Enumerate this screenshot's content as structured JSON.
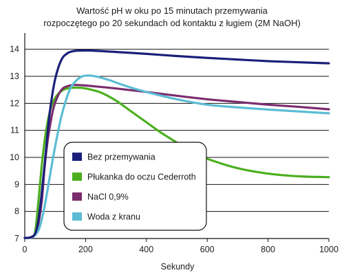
{
  "chart_data": {
    "type": "line",
    "title_line1": "Wartość pH w oku po 15 minutach przemywania",
    "title_line2": "rozpoczętego po 20 sekundach od kontaktu z ługiem (2M NaOH)",
    "xlabel": "Sekundy",
    "ylabel": "",
    "xlim": [
      0,
      1000
    ],
    "ylim": [
      7,
      14.5
    ],
    "xticks": [
      0,
      200,
      400,
      600,
      800,
      1000
    ],
    "yticks": [
      7,
      8,
      9,
      10,
      11,
      12,
      13,
      14
    ],
    "grid": "horizontal",
    "legend_position": "center-left",
    "series": [
      {
        "name": "Bez przemywania",
        "color": "#1b1f7a",
        "points": [
          [
            0,
            7.02
          ],
          [
            20,
            7.05
          ],
          [
            35,
            7.2
          ],
          [
            45,
            7.7
          ],
          [
            55,
            8.6
          ],
          [
            65,
            9.7
          ],
          [
            75,
            10.9
          ],
          [
            85,
            11.9
          ],
          [
            100,
            12.9
          ],
          [
            120,
            13.6
          ],
          [
            140,
            13.85
          ],
          [
            160,
            13.93
          ],
          [
            180,
            13.95
          ],
          [
            220,
            13.95
          ],
          [
            300,
            13.9
          ],
          [
            400,
            13.83
          ],
          [
            500,
            13.75
          ],
          [
            600,
            13.68
          ],
          [
            700,
            13.62
          ],
          [
            800,
            13.56
          ],
          [
            900,
            13.52
          ],
          [
            1000,
            13.48
          ]
        ]
      },
      {
        "name": "Płukanka do oczu Cederroth",
        "color": "#4caf1f",
        "points": [
          [
            0,
            7.02
          ],
          [
            25,
            7.05
          ],
          [
            35,
            7.3
          ],
          [
            45,
            8.4
          ],
          [
            55,
            9.6
          ],
          [
            65,
            10.6
          ],
          [
            75,
            11.3
          ],
          [
            85,
            11.8
          ],
          [
            100,
            12.2
          ],
          [
            120,
            12.45
          ],
          [
            140,
            12.55
          ],
          [
            170,
            12.58
          ],
          [
            200,
            12.55
          ],
          [
            250,
            12.4
          ],
          [
            300,
            12.1
          ],
          [
            350,
            11.7
          ],
          [
            400,
            11.3
          ],
          [
            450,
            10.9
          ],
          [
            500,
            10.55
          ],
          [
            550,
            10.2
          ],
          [
            600,
            9.95
          ],
          [
            700,
            9.6
          ],
          [
            800,
            9.4
          ],
          [
            900,
            9.3
          ],
          [
            1000,
            9.27
          ]
        ]
      },
      {
        "name": "NaCl 0,9%",
        "color": "#7b2c6e",
        "points": [
          [
            0,
            7.02
          ],
          [
            25,
            7.05
          ],
          [
            40,
            7.3
          ],
          [
            55,
            8.3
          ],
          [
            65,
            9.6
          ],
          [
            75,
            10.6
          ],
          [
            85,
            11.3
          ],
          [
            95,
            11.85
          ],
          [
            110,
            12.3
          ],
          [
            125,
            12.55
          ],
          [
            145,
            12.65
          ],
          [
            165,
            12.68
          ],
          [
            200,
            12.66
          ],
          [
            300,
            12.55
          ],
          [
            400,
            12.42
          ],
          [
            500,
            12.28
          ],
          [
            600,
            12.15
          ],
          [
            700,
            12.05
          ],
          [
            800,
            11.95
          ],
          [
            900,
            11.87
          ],
          [
            1000,
            11.78
          ]
        ]
      },
      {
        "name": "Woda z kranu",
        "color": "#5bbcd4",
        "points": [
          [
            0,
            7.02
          ],
          [
            25,
            7.05
          ],
          [
            45,
            7.3
          ],
          [
            60,
            7.9
          ],
          [
            75,
            8.8
          ],
          [
            90,
            9.8
          ],
          [
            105,
            10.7
          ],
          [
            120,
            11.5
          ],
          [
            135,
            12.1
          ],
          [
            150,
            12.55
          ],
          [
            170,
            12.85
          ],
          [
            190,
            13.0
          ],
          [
            210,
            13.03
          ],
          [
            240,
            12.98
          ],
          [
            280,
            12.85
          ],
          [
            330,
            12.65
          ],
          [
            400,
            12.42
          ],
          [
            500,
            12.15
          ],
          [
            600,
            11.95
          ],
          [
            700,
            11.85
          ],
          [
            800,
            11.77
          ],
          [
            900,
            11.7
          ],
          [
            1000,
            11.63
          ]
        ]
      }
    ]
  }
}
